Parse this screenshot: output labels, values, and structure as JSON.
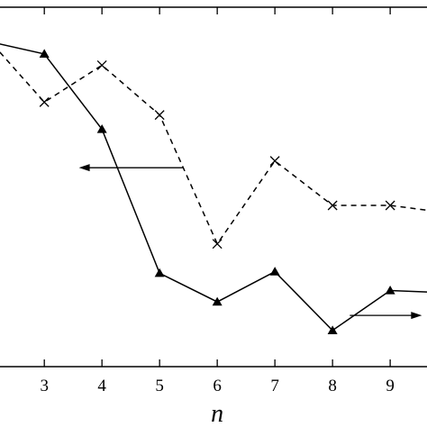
{
  "chart_data": {
    "type": "line",
    "xlabel": "n",
    "ylabel": "",
    "xlim": [
      2.2,
      9.67
    ],
    "ylim": [
      -0.32,
      4.45
    ],
    "grid": false,
    "xticks": [
      3,
      4,
      5,
      6,
      7,
      8,
      9
    ],
    "series": [
      {
        "style": "solid",
        "marker": "filled-triangle",
        "color": "#000000",
        "x": [
          2,
          3,
          4,
          5,
          6,
          7,
          8,
          9,
          10
        ],
        "y": [
          4.0,
          3.83,
          2.83,
          0.92,
          0.54,
          0.94,
          0.16,
          0.69,
          0.66
        ]
      },
      {
        "style": "dashed",
        "marker": "x-cross",
        "color": "#000000",
        "x": [
          2,
          3,
          4,
          5,
          6,
          7,
          8,
          9,
          10
        ],
        "y": [
          4.05,
          3.19,
          3.68,
          3.02,
          1.31,
          2.41,
          1.82,
          1.82,
          1.72
        ]
      }
    ],
    "annotations": [
      {
        "type": "arrow",
        "direction": "left",
        "x_from": 5.4,
        "x_to": 3.6,
        "y": 2.32
      },
      {
        "type": "arrow",
        "direction": "right",
        "x_from": 8.3,
        "x_to": 9.55,
        "y": 0.36
      }
    ]
  }
}
